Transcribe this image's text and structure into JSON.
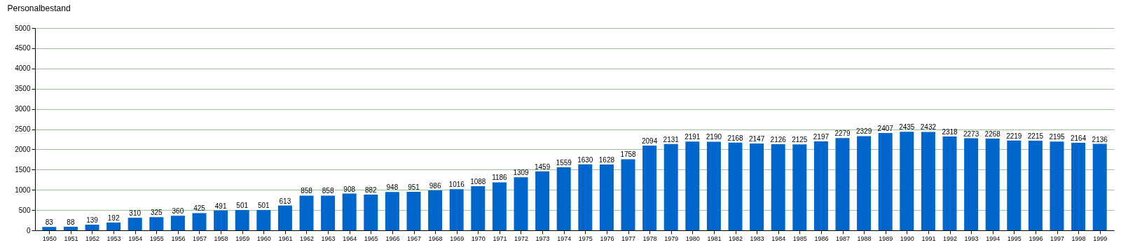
{
  "chart_data": {
    "type": "bar",
    "ylabel": "Personalbestand",
    "categories": [
      "1950",
      "1951",
      "1952",
      "1953",
      "1954",
      "1955",
      "1956",
      "1957",
      "1958",
      "1959",
      "1960",
      "1961",
      "1962",
      "1963",
      "1964",
      "1965",
      "1966",
      "1967",
      "1968",
      "1969",
      "1970",
      "1971",
      "1972",
      "1973",
      "1974",
      "1975",
      "1976",
      "1977",
      "1978",
      "1979",
      "1980",
      "1981",
      "1982",
      "1983",
      "1984",
      "1985",
      "1986",
      "1987",
      "1988",
      "1989",
      "1990",
      "1991",
      "1992",
      "1993",
      "1994",
      "1995",
      "1996",
      "1997",
      "1998",
      "1999"
    ],
    "values": [
      83,
      88,
      139,
      192,
      310,
      325,
      360,
      425,
      491,
      501,
      501,
      613,
      858,
      858,
      908,
      882,
      948,
      951,
      986,
      1016,
      1088,
      1186,
      1309,
      1459,
      1559,
      1630,
      1628,
      1758,
      2094,
      2131,
      2191,
      2190,
      2168,
      2147,
      2126,
      2125,
      2197,
      2279,
      2329,
      2407,
      2435,
      2432,
      2318,
      2273,
      2268,
      2219,
      2215,
      2195,
      2164,
      2136
    ],
    "color": "#0066cc",
    "ylim": [
      0,
      5000
    ],
    "yticks": [
      0,
      500,
      1000,
      1500,
      2000,
      2500,
      3000,
      3500,
      4000,
      4500,
      5000
    ],
    "grid": "y",
    "data_labels": true
  }
}
